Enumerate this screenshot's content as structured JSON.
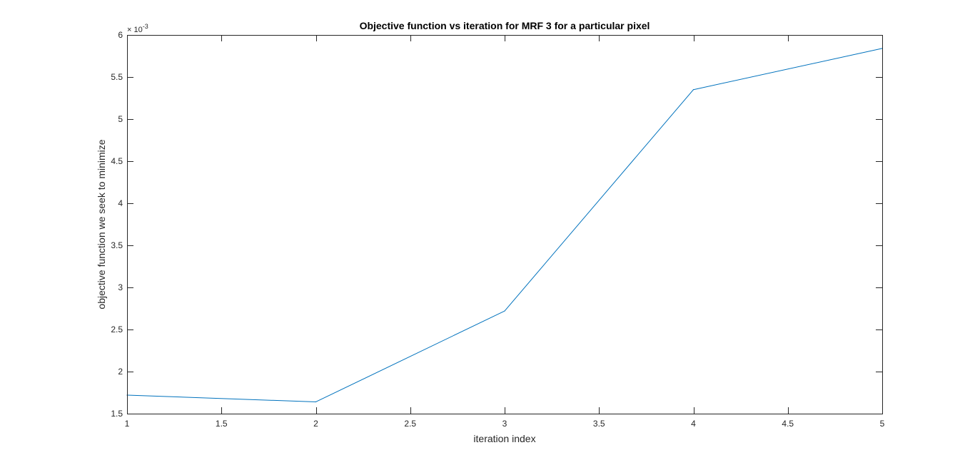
{
  "chart_data": {
    "type": "line",
    "title": "Objective function vs iteration for MRF 3 for a particular pixel",
    "xlabel": "iteration index",
    "ylabel": "objective function we seek to minimize",
    "y_exponent_base": "× 10",
    "y_exponent_power": "-3",
    "xlim": [
      1,
      5
    ],
    "ylim": [
      1.5,
      6
    ],
    "x_ticks": [
      1,
      1.5,
      2,
      2.5,
      3,
      3.5,
      4,
      4.5,
      5
    ],
    "x_tick_labels": [
      "1",
      "1.5",
      "2",
      "2.5",
      "3",
      "3.5",
      "4",
      "4.5",
      "5"
    ],
    "y_ticks": [
      1.5,
      2,
      2.5,
      3,
      3.5,
      4,
      4.5,
      5,
      5.5,
      6
    ],
    "y_tick_labels": [
      "1.5",
      "2",
      "2.5",
      "3",
      "3.5",
      "4",
      "4.5",
      "5",
      "5.5",
      "6"
    ],
    "y_scale_note": "values shown in units of 10^-3",
    "grid": false,
    "series": [
      {
        "color": "#0072BD",
        "x": [
          1,
          2,
          3,
          4,
          5
        ],
        "y": [
          1.72,
          1.64,
          2.72,
          5.35,
          5.84
        ]
      }
    ]
  }
}
